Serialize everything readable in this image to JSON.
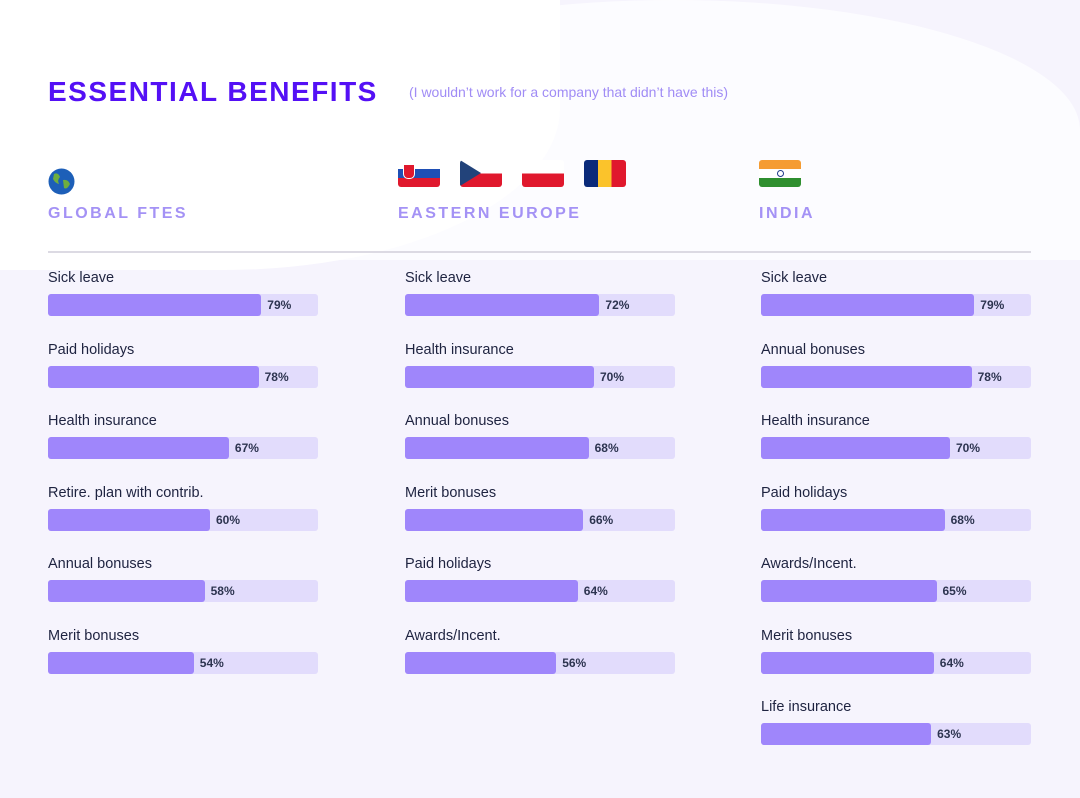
{
  "header": {
    "title": "ESSENTIAL BENEFITS",
    "subtitle": "(I wouldn’t work for a company that didn’t have this)"
  },
  "colors": {
    "title": "#5410f5",
    "bar_fill": "#9f86fb",
    "bar_track": "#e2dcfc",
    "region": "#a492f5"
  },
  "chart_data": [
    {
      "type": "bar",
      "orientation": "horizontal",
      "title": "GLOBAL FTES",
      "icon": "globe-icon",
      "xlim": [
        0,
        100
      ],
      "categories": [
        "Sick leave",
        "Paid holidays",
        "Health insurance",
        "Retire. plan with contrib.",
        "Annual bonuses",
        "Merit bonuses"
      ],
      "values": [
        79,
        78,
        67,
        60,
        58,
        54
      ],
      "labels": [
        "79%",
        "78%",
        "67%",
        "60%",
        "58%",
        "54%"
      ]
    },
    {
      "type": "bar",
      "orientation": "horizontal",
      "title": "EASTERN EUROPE",
      "icon": "flags-slovakia-czechia-poland-romania",
      "xlim": [
        0,
        100
      ],
      "categories": [
        "Sick leave",
        "Health insurance",
        "Annual bonuses",
        "Merit bonuses",
        "Paid holidays",
        "Awards/Incent."
      ],
      "values": [
        72,
        70,
        68,
        66,
        64,
        56
      ],
      "labels": [
        "72%",
        "70%",
        "68%",
        "66%",
        "64%",
        "56%"
      ]
    },
    {
      "type": "bar",
      "orientation": "horizontal",
      "title": "INDIA",
      "icon": "flag-india",
      "xlim": [
        0,
        100
      ],
      "categories": [
        "Sick leave",
        "Annual bonuses",
        "Health insurance",
        "Paid holidays",
        "Awards/Incent.",
        "Merit bonuses",
        "Life insurance"
      ],
      "values": [
        79,
        78,
        70,
        68,
        65,
        64,
        63
      ],
      "labels": [
        "79%",
        "78%",
        "70%",
        "68%",
        "65%",
        "64%",
        "63%"
      ]
    }
  ]
}
